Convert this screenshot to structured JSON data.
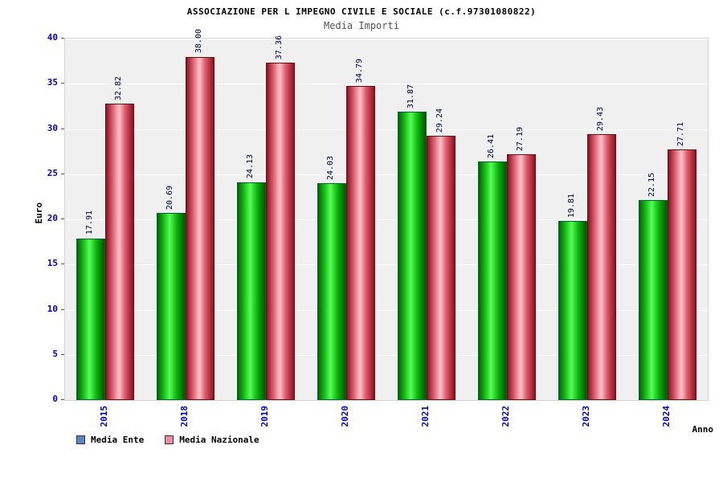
{
  "title": "ASSOCIAZIONE PER L IMPEGNO CIVILE E SOCIALE (c.f.97301080822)",
  "subtitle": "Media Importi",
  "chart_data": {
    "type": "bar",
    "title": "Media Importi",
    "categories": [
      "2015",
      "2018",
      "2019",
      "2020",
      "2021",
      "2022",
      "2023",
      "2024"
    ],
    "series": [
      {
        "name": "Media Ente",
        "values": [
          17.91,
          20.69,
          24.13,
          24.03,
          31.87,
          26.41,
          19.81,
          22.15
        ]
      },
      {
        "name": "Media Nazionale",
        "values": [
          32.82,
          38.0,
          37.36,
          34.79,
          29.24,
          27.19,
          29.43,
          27.71
        ]
      }
    ],
    "xlabel": "Anno",
    "ylabel": "Euro",
    "ylim": [
      0,
      40
    ],
    "ytick_step": 5,
    "grid": true,
    "value_labels": "rotated-vertical, 2 decimals",
    "legend_position": "bottom-left"
  },
  "legend": [
    {
      "label": "Media Ente",
      "swatch_color": "#5b85c8"
    },
    {
      "label": "Media Nazionale",
      "swatch_color": "#e890a0"
    }
  ],
  "colors": {
    "bar_media_ente": "#22cc22",
    "bar_media_nazionale": "#e87585",
    "axis_text": "#0000cc",
    "value_label_text": "#000044",
    "plot_background": "#f0f0f0",
    "gridline": "#ffffff"
  }
}
